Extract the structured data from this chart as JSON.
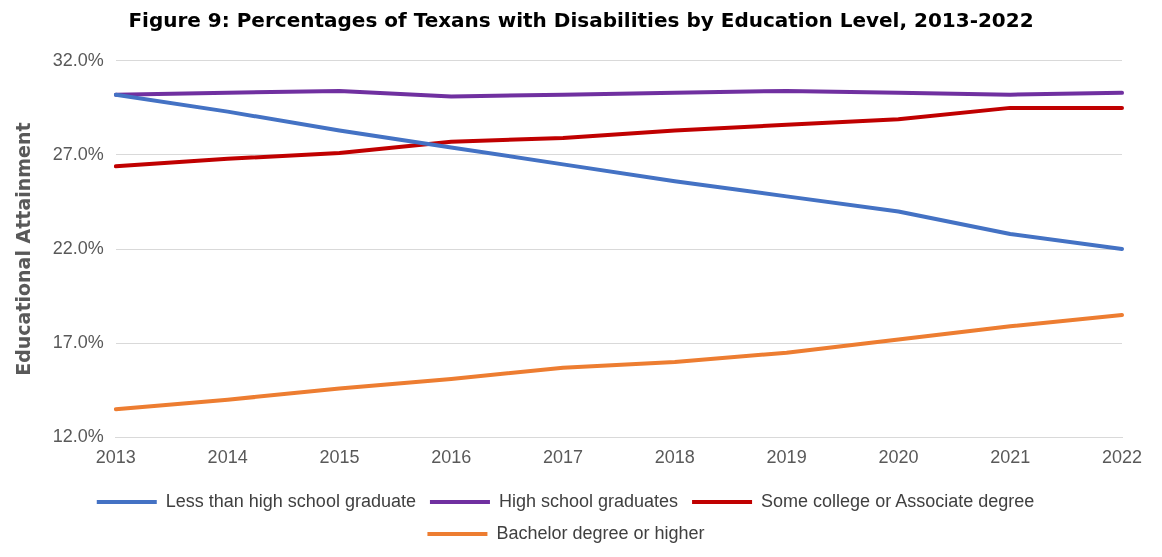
{
  "chart_data": {
    "type": "line",
    "title": "Figure 9: Percentages of Texans with Disabilities by Education Level, 2013-2022",
    "ylabel": "Educational Attainment",
    "categories": [
      "2013",
      "2014",
      "2015",
      "2016",
      "2017",
      "2018",
      "2019",
      "2020",
      "2021",
      "2022"
    ],
    "series": [
      {
        "name": "Less than high school graduate",
        "color": "#4472c4",
        "values": [
          30.2,
          29.3,
          28.3,
          27.4,
          26.5,
          25.6,
          24.8,
          24.0,
          22.8,
          22.0
        ]
      },
      {
        "name": "High school graduates",
        "color": "#7030a0",
        "values": [
          30.2,
          30.3,
          30.4,
          30.1,
          30.2,
          30.3,
          30.4,
          30.3,
          30.2,
          30.3
        ]
      },
      {
        "name": "Some college or Associate degree",
        "color": "#c00000",
        "values": [
          26.4,
          26.8,
          27.1,
          27.7,
          27.9,
          28.3,
          28.6,
          28.9,
          29.5,
          29.5
        ]
      },
      {
        "name": "Bachelor degree or higher",
        "color": "#ed7d31",
        "values": [
          13.5,
          14.0,
          14.6,
          15.1,
          15.7,
          16.0,
          16.5,
          17.2,
          17.9,
          18.5
        ]
      }
    ],
    "ylim": [
      12,
      32
    ],
    "yticks": [
      {
        "value": 12,
        "label": "12.0%"
      },
      {
        "value": 17,
        "label": "17.0%"
      },
      {
        "value": 22,
        "label": "22.0%"
      },
      {
        "value": 27,
        "label": "27.0%"
      },
      {
        "value": 32,
        "label": "32.0%"
      }
    ],
    "grid": "y",
    "legend": "bottom",
    "marker": "none",
    "line_style": "solid"
  }
}
